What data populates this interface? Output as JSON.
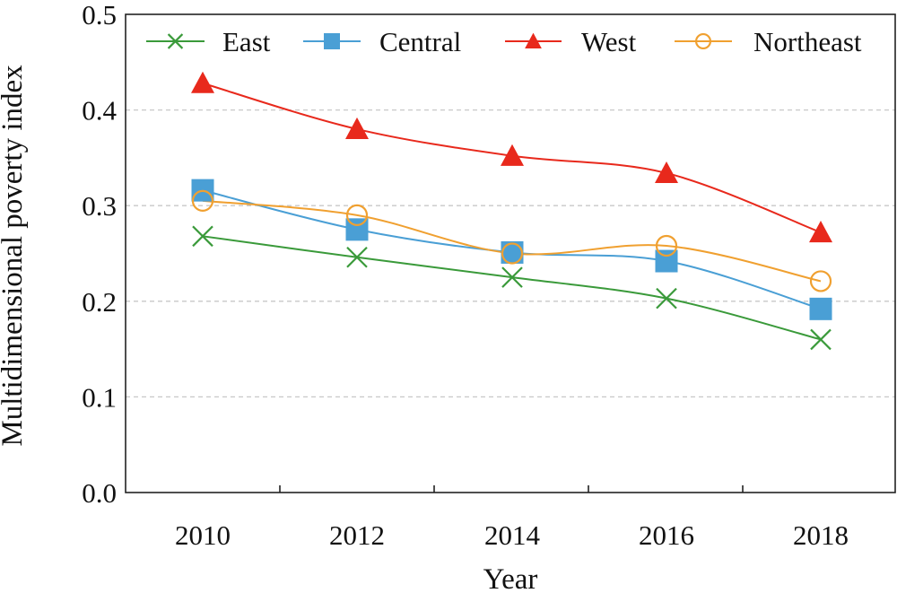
{
  "chart_data": {
    "type": "line",
    "x": [
      "2010",
      "2012",
      "2014",
      "2016",
      "2018"
    ],
    "xlabel": "Year",
    "ylabel": "Multidimensional poverty index",
    "ylim": [
      0.0,
      0.5
    ],
    "yticks": [
      "0.0",
      "0.1",
      "0.2",
      "0.3",
      "0.4",
      "0.5"
    ],
    "grid": "horizontal dashed",
    "legend_position": "top",
    "series": [
      {
        "name": "East",
        "values": [
          0.268,
          0.246,
          0.225,
          0.203,
          0.16
        ],
        "color": "#3a9a3a",
        "marker": "x"
      },
      {
        "name": "Central",
        "values": [
          0.316,
          0.275,
          0.251,
          0.242,
          0.192
        ],
        "color": "#4a9fd5",
        "marker": "square"
      },
      {
        "name": "West",
        "values": [
          0.428,
          0.38,
          0.352,
          0.334,
          0.272
        ],
        "color": "#e8291c",
        "marker": "triangle"
      },
      {
        "name": "Northeast",
        "values": [
          0.305,
          0.29,
          0.25,
          0.258,
          0.221
        ],
        "color": "#f0a030",
        "marker": "open-circle"
      }
    ]
  }
}
